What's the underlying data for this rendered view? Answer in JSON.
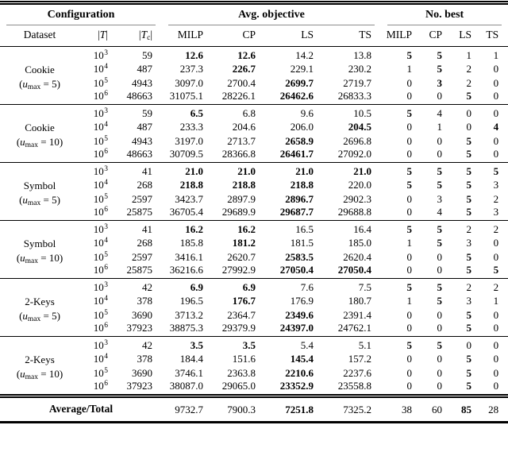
{
  "colors": {
    "background": "#ffffff",
    "text": "#000000",
    "rule": "#000000",
    "cmidrule": "#8c8c8c"
  },
  "header": {
    "groups": [
      {
        "label": "Configuration"
      },
      {
        "label": "Avg. objective"
      },
      {
        "label": "No. best"
      }
    ],
    "dataset_col": "Dataset",
    "t_col": {
      "open": "|",
      "sym": "T",
      "close": "|"
    },
    "tc_col": {
      "open": "|",
      "sym": "T",
      "sub": "c",
      "close": "|"
    },
    "avg_cols": [
      "MILP",
      "CP",
      "LS",
      "TS"
    ],
    "best_cols": [
      "MILP",
      "CP",
      "LS",
      "TS"
    ]
  },
  "blocks": [
    {
      "dataset": "Cookie",
      "umax": {
        "open": "(",
        "var": "u",
        "sub": "max",
        "rest": " = 5)"
      },
      "rows": [
        {
          "t_base": "10",
          "t_exp": "3",
          "tc": "59",
          "avg": [
            "12.6",
            "12.6",
            "14.2",
            "13.8"
          ],
          "avg_bold": [
            true,
            true,
            false,
            false
          ],
          "best": [
            "5",
            "5",
            "1",
            "1"
          ],
          "best_bold": [
            true,
            true,
            false,
            false
          ]
        },
        {
          "t_base": "10",
          "t_exp": "4",
          "tc": "487",
          "avg": [
            "237.3",
            "226.7",
            "229.1",
            "230.2"
          ],
          "avg_bold": [
            false,
            true,
            false,
            false
          ],
          "best": [
            "1",
            "5",
            "2",
            "0"
          ],
          "best_bold": [
            false,
            true,
            false,
            false
          ]
        },
        {
          "t_base": "10",
          "t_exp": "5",
          "tc": "4943",
          "avg": [
            "3097.0",
            "2700.4",
            "2699.7",
            "2719.7"
          ],
          "avg_bold": [
            false,
            false,
            true,
            false
          ],
          "best": [
            "0",
            "3",
            "2",
            "0"
          ],
          "best_bold": [
            false,
            true,
            false,
            false
          ]
        },
        {
          "t_base": "10",
          "t_exp": "6",
          "tc": "48663",
          "avg": [
            "31075.1",
            "28226.1",
            "26462.6",
            "26833.3"
          ],
          "avg_bold": [
            false,
            false,
            true,
            false
          ],
          "best": [
            "0",
            "0",
            "5",
            "0"
          ],
          "best_bold": [
            false,
            false,
            true,
            false
          ]
        }
      ]
    },
    {
      "dataset": "Cookie",
      "umax": {
        "open": "(",
        "var": "u",
        "sub": "max",
        "rest": " = 10)"
      },
      "rows": [
        {
          "t_base": "10",
          "t_exp": "3",
          "tc": "59",
          "avg": [
            "6.5",
            "6.8",
            "9.6",
            "10.5"
          ],
          "avg_bold": [
            true,
            false,
            false,
            false
          ],
          "best": [
            "5",
            "4",
            "0",
            "0"
          ],
          "best_bold": [
            true,
            false,
            false,
            false
          ]
        },
        {
          "t_base": "10",
          "t_exp": "4",
          "tc": "487",
          "avg": [
            "233.3",
            "204.6",
            "206.0",
            "204.5"
          ],
          "avg_bold": [
            false,
            false,
            false,
            true
          ],
          "best": [
            "0",
            "1",
            "0",
            "4"
          ],
          "best_bold": [
            false,
            false,
            false,
            true
          ]
        },
        {
          "t_base": "10",
          "t_exp": "5",
          "tc": "4943",
          "avg": [
            "3197.0",
            "2713.7",
            "2658.9",
            "2696.8"
          ],
          "avg_bold": [
            false,
            false,
            true,
            false
          ],
          "best": [
            "0",
            "0",
            "5",
            "0"
          ],
          "best_bold": [
            false,
            false,
            true,
            false
          ]
        },
        {
          "t_base": "10",
          "t_exp": "6",
          "tc": "48663",
          "avg": [
            "30709.5",
            "28366.8",
            "26461.7",
            "27092.0"
          ],
          "avg_bold": [
            false,
            false,
            true,
            false
          ],
          "best": [
            "0",
            "0",
            "5",
            "0"
          ],
          "best_bold": [
            false,
            false,
            true,
            false
          ]
        }
      ]
    },
    {
      "dataset": "Symbol",
      "umax": {
        "open": "(",
        "var": "u",
        "sub": "max",
        "rest": " = 5)"
      },
      "rows": [
        {
          "t_base": "10",
          "t_exp": "3",
          "tc": "41",
          "avg": [
            "21.0",
            "21.0",
            "21.0",
            "21.0"
          ],
          "avg_bold": [
            true,
            true,
            true,
            true
          ],
          "best": [
            "5",
            "5",
            "5",
            "5"
          ],
          "best_bold": [
            true,
            true,
            true,
            true
          ]
        },
        {
          "t_base": "10",
          "t_exp": "4",
          "tc": "268",
          "avg": [
            "218.8",
            "218.8",
            "218.8",
            "220.0"
          ],
          "avg_bold": [
            true,
            true,
            true,
            false
          ],
          "best": [
            "5",
            "5",
            "5",
            "3"
          ],
          "best_bold": [
            true,
            true,
            true,
            false
          ]
        },
        {
          "t_base": "10",
          "t_exp": "5",
          "tc": "2597",
          "avg": [
            "3423.7",
            "2897.9",
            "2896.7",
            "2902.3"
          ],
          "avg_bold": [
            false,
            false,
            true,
            false
          ],
          "best": [
            "0",
            "3",
            "5",
            "2"
          ],
          "best_bold": [
            false,
            false,
            true,
            false
          ]
        },
        {
          "t_base": "10",
          "t_exp": "6",
          "tc": "25875",
          "avg": [
            "36705.4",
            "29689.9",
            "29687.7",
            "29688.8"
          ],
          "avg_bold": [
            false,
            false,
            true,
            false
          ],
          "best": [
            "0",
            "4",
            "5",
            "3"
          ],
          "best_bold": [
            false,
            false,
            true,
            false
          ]
        }
      ]
    },
    {
      "dataset": "Symbol",
      "umax": {
        "open": "(",
        "var": "u",
        "sub": "max",
        "rest": " = 10)"
      },
      "rows": [
        {
          "t_base": "10",
          "t_exp": "3",
          "tc": "41",
          "avg": [
            "16.2",
            "16.2",
            "16.5",
            "16.4"
          ],
          "avg_bold": [
            true,
            true,
            false,
            false
          ],
          "best": [
            "5",
            "5",
            "2",
            "2"
          ],
          "best_bold": [
            true,
            true,
            false,
            false
          ]
        },
        {
          "t_base": "10",
          "t_exp": "4",
          "tc": "268",
          "avg": [
            "185.8",
            "181.2",
            "181.5",
            "185.0"
          ],
          "avg_bold": [
            false,
            true,
            false,
            false
          ],
          "best": [
            "1",
            "5",
            "3",
            "0"
          ],
          "best_bold": [
            false,
            true,
            false,
            false
          ]
        },
        {
          "t_base": "10",
          "t_exp": "5",
          "tc": "2597",
          "avg": [
            "3416.1",
            "2620.7",
            "2583.5",
            "2620.4"
          ],
          "avg_bold": [
            false,
            false,
            true,
            false
          ],
          "best": [
            "0",
            "0",
            "5",
            "0"
          ],
          "best_bold": [
            false,
            false,
            true,
            false
          ]
        },
        {
          "t_base": "10",
          "t_exp": "6",
          "tc": "25875",
          "avg": [
            "36216.6",
            "27992.9",
            "27050.4",
            "27050.4"
          ],
          "avg_bold": [
            false,
            false,
            true,
            true
          ],
          "best": [
            "0",
            "0",
            "5",
            "5"
          ],
          "best_bold": [
            false,
            false,
            true,
            true
          ]
        }
      ]
    },
    {
      "dataset": "2-Keys",
      "umax": {
        "open": "(",
        "var": "u",
        "sub": "max",
        "rest": " = 5)"
      },
      "rows": [
        {
          "t_base": "10",
          "t_exp": "3",
          "tc": "42",
          "avg": [
            "6.9",
            "6.9",
            "7.6",
            "7.5"
          ],
          "avg_bold": [
            true,
            true,
            false,
            false
          ],
          "best": [
            "5",
            "5",
            "2",
            "2"
          ],
          "best_bold": [
            true,
            true,
            false,
            false
          ]
        },
        {
          "t_base": "10",
          "t_exp": "4",
          "tc": "378",
          "avg": [
            "196.5",
            "176.7",
            "176.9",
            "180.7"
          ],
          "avg_bold": [
            false,
            true,
            false,
            false
          ],
          "best": [
            "1",
            "5",
            "3",
            "1"
          ],
          "best_bold": [
            false,
            true,
            false,
            false
          ]
        },
        {
          "t_base": "10",
          "t_exp": "5",
          "tc": "3690",
          "avg": [
            "3713.2",
            "2364.7",
            "2349.6",
            "2391.4"
          ],
          "avg_bold": [
            false,
            false,
            true,
            false
          ],
          "best": [
            "0",
            "0",
            "5",
            "0"
          ],
          "best_bold": [
            false,
            false,
            true,
            false
          ]
        },
        {
          "t_base": "10",
          "t_exp": "6",
          "tc": "37923",
          "avg": [
            "38875.3",
            "29379.9",
            "24397.0",
            "24762.1"
          ],
          "avg_bold": [
            false,
            false,
            true,
            false
          ],
          "best": [
            "0",
            "0",
            "5",
            "0"
          ],
          "best_bold": [
            false,
            false,
            true,
            false
          ]
        }
      ]
    },
    {
      "dataset": "2-Keys",
      "umax": {
        "open": "(",
        "var": "u",
        "sub": "max",
        "rest": " = 10)"
      },
      "rows": [
        {
          "t_base": "10",
          "t_exp": "3",
          "tc": "42",
          "avg": [
            "3.5",
            "3.5",
            "5.4",
            "5.1"
          ],
          "avg_bold": [
            true,
            true,
            false,
            false
          ],
          "best": [
            "5",
            "5",
            "0",
            "0"
          ],
          "best_bold": [
            true,
            true,
            false,
            false
          ]
        },
        {
          "t_base": "10",
          "t_exp": "4",
          "tc": "378",
          "avg": [
            "184.4",
            "151.6",
            "145.4",
            "157.2"
          ],
          "avg_bold": [
            false,
            false,
            true,
            false
          ],
          "best": [
            "0",
            "0",
            "5",
            "0"
          ],
          "best_bold": [
            false,
            false,
            true,
            false
          ]
        },
        {
          "t_base": "10",
          "t_exp": "5",
          "tc": "3690",
          "avg": [
            "3746.1",
            "2363.8",
            "2210.6",
            "2237.6"
          ],
          "avg_bold": [
            false,
            false,
            true,
            false
          ],
          "best": [
            "0",
            "0",
            "5",
            "0"
          ],
          "best_bold": [
            false,
            false,
            true,
            false
          ]
        },
        {
          "t_base": "10",
          "t_exp": "6",
          "tc": "37923",
          "avg": [
            "38087.0",
            "29065.0",
            "23352.9",
            "23558.8"
          ],
          "avg_bold": [
            false,
            false,
            true,
            false
          ],
          "best": [
            "0",
            "0",
            "5",
            "0"
          ],
          "best_bold": [
            false,
            false,
            true,
            false
          ]
        }
      ]
    }
  ],
  "footer": {
    "label": "Average/Total",
    "avg": [
      "9732.7",
      "7900.3",
      "7251.8",
      "7325.2"
    ],
    "avg_bold": [
      false,
      false,
      true,
      false
    ],
    "best": [
      "38",
      "60",
      "85",
      "28"
    ],
    "best_bold": [
      false,
      false,
      true,
      false
    ]
  }
}
